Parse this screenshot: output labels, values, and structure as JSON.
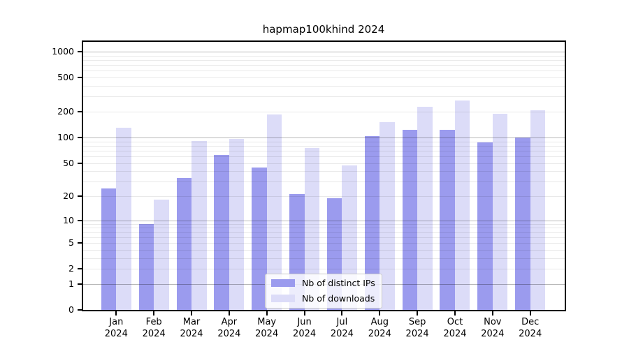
{
  "chart_data": {
    "type": "bar",
    "title": "hapmap100khind 2024",
    "categories": [
      "Jan",
      "Feb",
      "Mar",
      "Apr",
      "May",
      "Jun",
      "Jul",
      "Aug",
      "Sep",
      "Oct",
      "Nov",
      "Dec"
    ],
    "year_label": "2024",
    "series": [
      {
        "name": "Nb of distinct IPs",
        "color": "#9b9bee",
        "values": [
          25,
          9,
          33,
          62,
          44,
          21,
          19,
          103,
          122,
          122,
          88,
          99
        ]
      },
      {
        "name": "Nb of downloads",
        "color": "#dcdcf8",
        "values": [
          130,
          18,
          90,
          96,
          186,
          75,
          47,
          150,
          230,
          268,
          190,
          208
        ]
      }
    ],
    "y_scale": "log1p",
    "y_ticks": [
      0,
      1,
      2,
      5,
      10,
      20,
      50,
      100,
      200,
      500,
      1000
    ],
    "y_minor_gridlines": [
      2,
      3,
      4,
      5,
      6,
      7,
      8,
      9,
      20,
      30,
      40,
      50,
      60,
      70,
      80,
      90,
      200,
      300,
      400,
      500,
      600,
      700,
      800,
      900
    ],
    "y_major_gridlines": [
      1,
      10,
      100,
      1000
    ],
    "ylim": [
      0,
      1300
    ],
    "xlabel": "",
    "ylabel": "",
    "grid": "horizontal",
    "legend_position": "lower center"
  }
}
